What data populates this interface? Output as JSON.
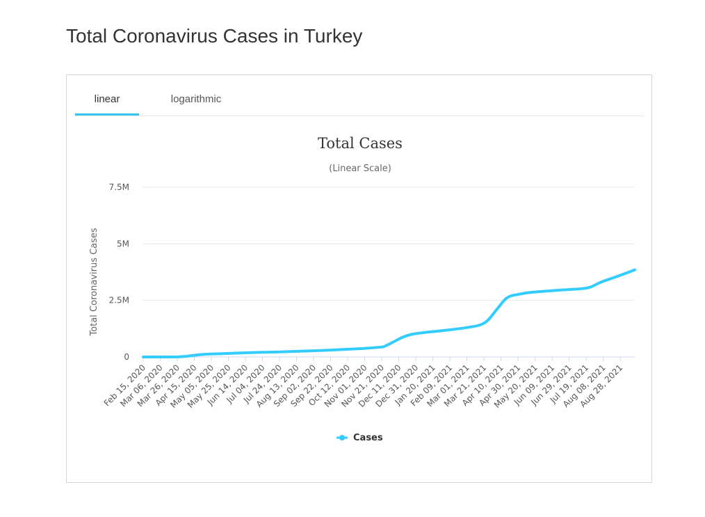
{
  "page": {
    "title": "Total Coronavirus Cases in Turkey"
  },
  "tabs": [
    {
      "label": "linear",
      "active": true
    },
    {
      "label": "logarithmic",
      "active": false
    }
  ],
  "colors": {
    "accent": "#37c5f0",
    "series": "#33ccff",
    "grid": "#e6e6e6",
    "axis": "#ccd6eb"
  },
  "chart_data": {
    "type": "line",
    "title": "Total Cases",
    "subtitle": "(Linear Scale)",
    "ylabel": "Total Coronavirus Cases",
    "xlabel": "",
    "ylim": [
      0,
      7500000
    ],
    "yticks": [
      {
        "value": 0,
        "label": "0"
      },
      {
        "value": 2500000,
        "label": "2.5M"
      },
      {
        "value": 5000000,
        "label": "5M"
      },
      {
        "value": 7500000,
        "label": "7.5M"
      }
    ],
    "xlim": [
      "2020-02-15",
      "2021-09-14"
    ],
    "xticks": [
      "Feb 15, 2020",
      "Mar 06, 2020",
      "Mar 26, 2020",
      "Apr 15, 2020",
      "May 05, 2020",
      "May 25, 2020",
      "Jun 14, 2020",
      "Jul 04, 2020",
      "Jul 24, 2020",
      "Aug 13, 2020",
      "Sep 02, 2020",
      "Sep 22, 2020",
      "Oct 12, 2020",
      "Nov 01, 2020",
      "Nov 21, 2020",
      "Dec 11, 2020",
      "Dec 31, 2020",
      "Jan 20, 2021",
      "Feb 09, 2021",
      "Mar 01, 2021",
      "Mar 21, 2021",
      "Apr 10, 2021",
      "Apr 30, 2021",
      "May 20, 2021",
      "Jun 09, 2021",
      "Jun 29, 2021",
      "Jul 19, 2021",
      "Aug 08, 2021",
      "Aug 28, 2021"
    ],
    "grid": true,
    "legend": "bottom-center",
    "series": [
      {
        "name": "Cases",
        "x": [
          "2020-02-15",
          "2020-03-10",
          "2020-03-26",
          "2020-04-05",
          "2020-04-15",
          "2020-04-25",
          "2020-05-05",
          "2020-05-25",
          "2020-06-14",
          "2020-07-04",
          "2020-07-24",
          "2020-08-13",
          "2020-09-02",
          "2020-09-22",
          "2020-10-12",
          "2020-11-01",
          "2020-11-21",
          "2020-11-26",
          "2020-12-06",
          "2020-12-16",
          "2020-12-26",
          "2021-01-10",
          "2021-01-20",
          "2021-02-09",
          "2021-03-01",
          "2021-03-15",
          "2021-03-25",
          "2021-04-05",
          "2021-04-15",
          "2021-04-22",
          "2021-04-30",
          "2021-05-10",
          "2021-05-20",
          "2021-06-09",
          "2021-06-29",
          "2021-07-15",
          "2021-07-25",
          "2021-08-05",
          "2021-08-20",
          "2021-09-05",
          "2021-09-14"
        ],
        "values": [
          0,
          0,
          3000,
          27000,
          75000,
          110000,
          130000,
          156000,
          183000,
          205000,
          225000,
          250000,
          275000,
          305000,
          340000,
          380000,
          440000,
          500000,
          690000,
          880000,
          1000000,
          1080000,
          1120000,
          1200000,
          1300000,
          1400000,
          1600000,
          2100000,
          2550000,
          2700000,
          2760000,
          2830000,
          2870000,
          2930000,
          2980000,
          3020000,
          3100000,
          3300000,
          3500000,
          3720000,
          3850000
        ]
      }
    ]
  }
}
